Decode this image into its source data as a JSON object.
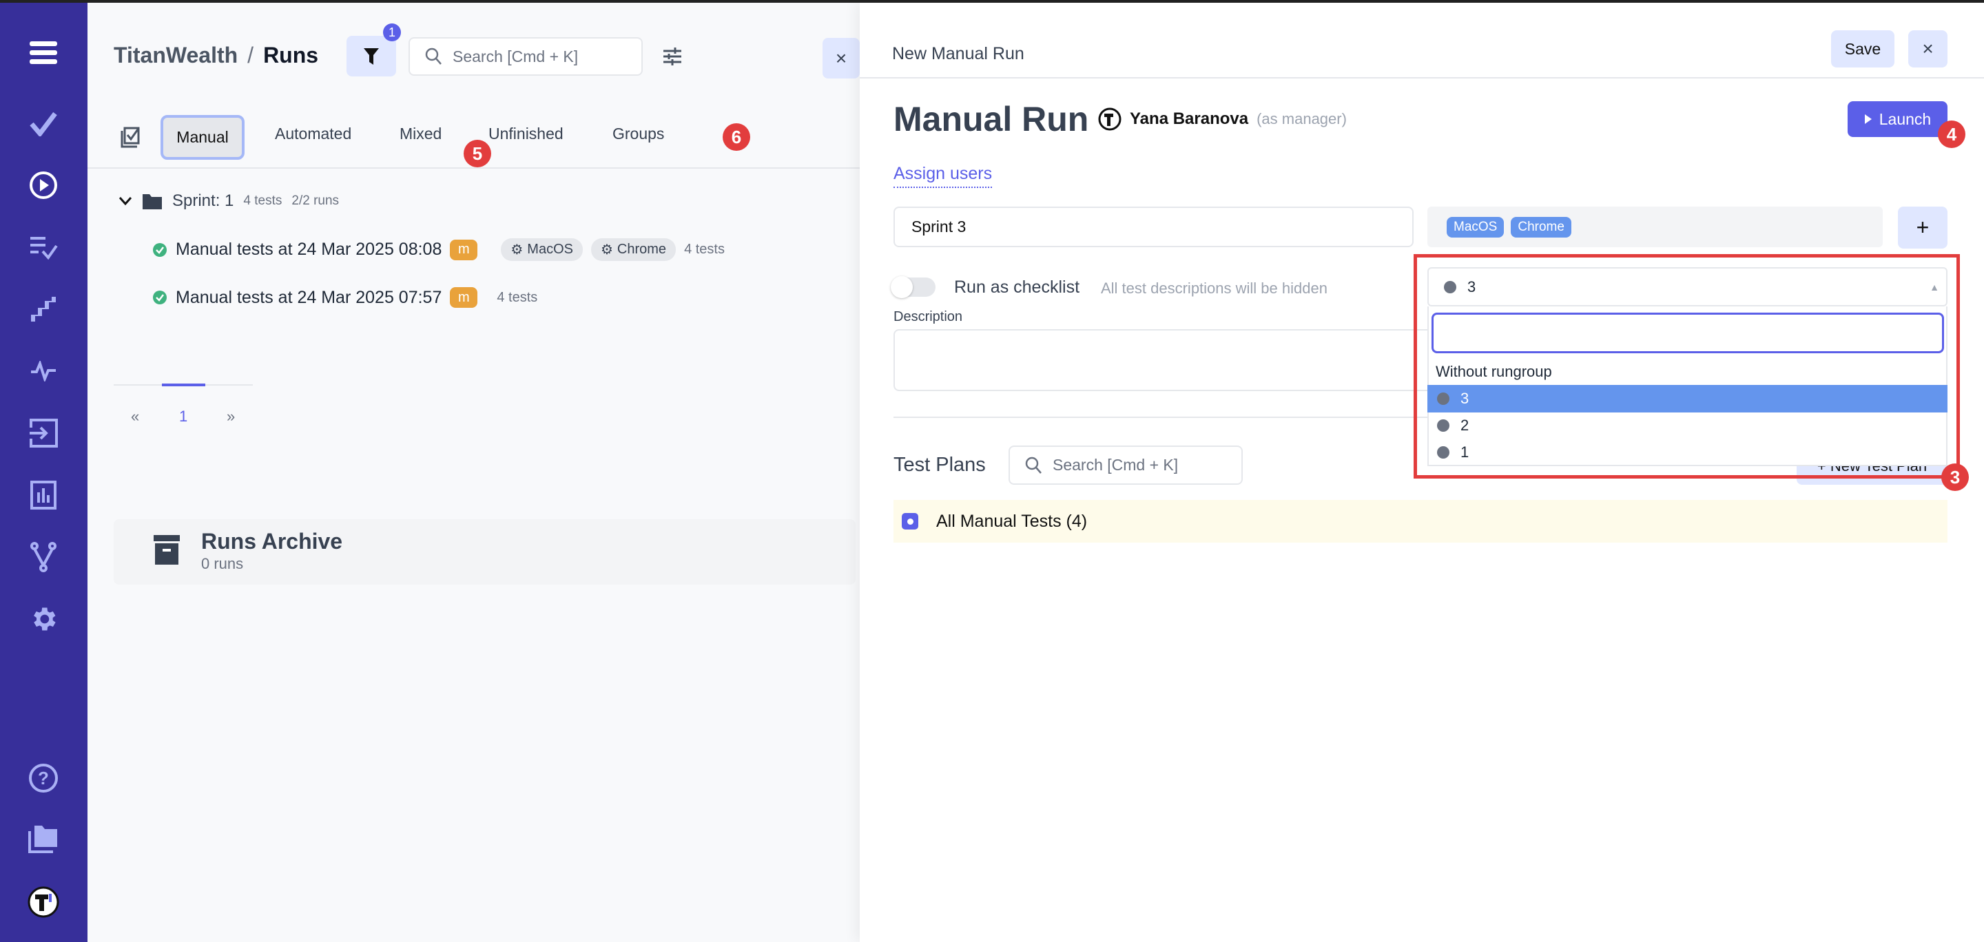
{
  "sidebar": {
    "icons": [
      "menu-icon",
      "check-icon",
      "play-circle-icon",
      "checklist-icon",
      "steps-icon",
      "pulse-icon",
      "import-icon",
      "analytics-icon",
      "branch-icon",
      "settings-icon",
      "help-icon",
      "folder-icon",
      "avatar-logo-icon"
    ],
    "color": "#372f9a"
  },
  "header": {
    "project": "TitanWealth",
    "separator": "/",
    "page": "Runs",
    "filter_count": "1",
    "search_placeholder": "Search [Cmd + K]",
    "close": "×"
  },
  "tabs": {
    "items": [
      "Manual",
      "Automated",
      "Mixed",
      "Unfinished",
      "Groups"
    ],
    "active": "Manual"
  },
  "tree": {
    "group": {
      "name": "Sprint: 1",
      "tests": "4 tests",
      "runs": "2/2 runs"
    },
    "runs": [
      {
        "title": "Manual tests at 24 Mar 2025 08:08",
        "badge": "m",
        "tags": [
          "MacOS",
          "Chrome"
        ],
        "tests": "4 tests"
      },
      {
        "title": "Manual tests at 24 Mar 2025 07:57",
        "badge": "m",
        "tags": [],
        "tests": "4 tests"
      }
    ]
  },
  "pagination": {
    "prev": "«",
    "current": "1",
    "next": "»"
  },
  "archive": {
    "title": "Runs Archive",
    "count": "0 runs"
  },
  "annotations": {
    "a1": "5",
    "a2": "6",
    "a3": "4",
    "a4": "3"
  },
  "panel": {
    "header_title": "New Manual Run",
    "save": "Save",
    "close": "×",
    "title": "Manual Run",
    "user": "Yana Baranova",
    "role": "(as manager)",
    "launch": "Launch",
    "assign_users": "Assign users",
    "run_name": "Sprint 3",
    "tags": [
      "MacOS",
      "Chrome"
    ],
    "add": "+",
    "checklist_label": "Run as checklist",
    "checklist_hint": "All test descriptions will be hidden",
    "checklist_on": false,
    "description_label": "Description",
    "test_plans": "Test Plans",
    "plans_search_placeholder": "Search [Cmd + K]",
    "new_test_plan": "+ New Test Plan",
    "all_tests": "All Manual Tests (4)"
  },
  "rungroup": {
    "selected": "3",
    "search_value": "",
    "options": [
      "Without rungroup",
      "3",
      "2",
      "1"
    ],
    "highlighted": "3",
    "highlight_color": "#6495ed"
  },
  "colors": {
    "accent": "#5b5fe8",
    "annotation": "#e23d3d",
    "success": "#3fb27f"
  }
}
